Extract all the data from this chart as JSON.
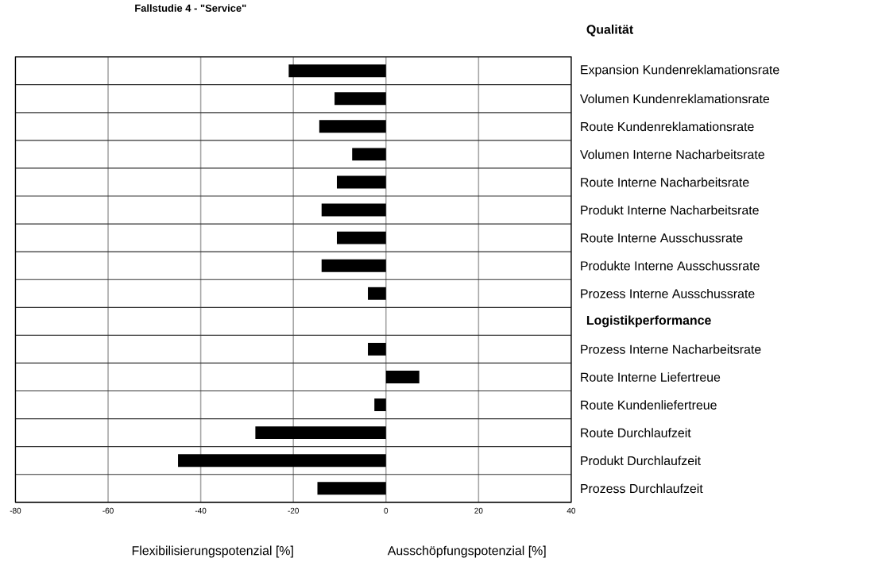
{
  "chart_data": {
    "type": "bar",
    "orientation": "horizontal",
    "title": "Fallstudie 4 - \"Service\"",
    "xlabel": "Flexibilisierungspotenzial [%]",
    "categories": [
      "Expansion Kundenreklamationsrate",
      "Volumen Kundenreklamationsrate",
      "Route Kundenreklamationsrate",
      "Volumen Interne Nacharbeitsrate",
      "Route Interne Nacharbeitsrate",
      "Produkt Interne Nacharbeitsrate",
      "Route Interne Ausschussrate",
      "Produkte Interne Ausschussrate",
      "Prozess Interne Ausschussrate",
      null,
      "Prozess Interne Nacharbeitsrate",
      "Route Interne Liefertreue",
      "Route Kundenliefertreue",
      "Route Durchlaufzeit",
      "Produkt Durchlaufzeit",
      "Prozess Durchlaufzeit"
    ],
    "values": [
      -21.0,
      -11.1,
      -14.4,
      -7.3,
      -10.6,
      -13.9,
      -10.6,
      -13.9,
      -3.9,
      null,
      -3.9,
      7.2,
      -2.5,
      -28.2,
      -44.9,
      -14.8
    ],
    "color": "#000000",
    "xlim": [
      -80,
      40
    ],
    "xticks": [
      -80,
      -60,
      -40,
      -20,
      0,
      20,
      40
    ],
    "grid": true,
    "annotations": [
      "Qualität",
      "Logistikperformance",
      "Ausschöpfungspotenzial [%]"
    ]
  }
}
